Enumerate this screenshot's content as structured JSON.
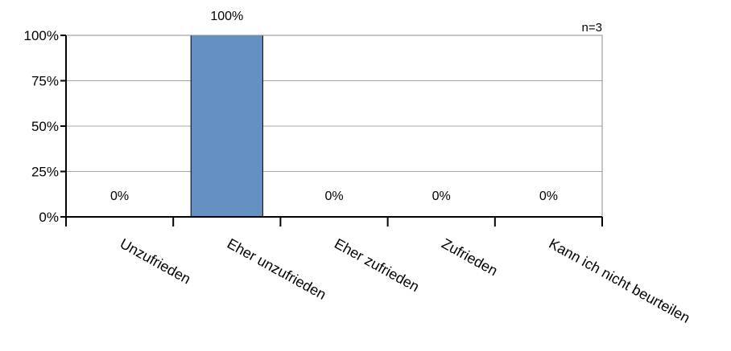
{
  "chart_data": {
    "type": "bar",
    "categories": [
      "Unzufrieden",
      "Eher unzufrieden",
      "Eher zufrieden",
      "Zufrieden",
      "Kann ich nicht beurteilen"
    ],
    "values": [
      0,
      100,
      0,
      0,
      0
    ],
    "data_labels": [
      "0%",
      "100%",
      "0%",
      "0%",
      "0%"
    ],
    "ylim": [
      0,
      100
    ],
    "yticks": [
      0,
      25,
      50,
      75,
      100
    ],
    "ytick_labels": [
      "0%",
      "25%",
      "50%",
      "75%",
      "100%"
    ],
    "grid": true,
    "note": "n=3",
    "bar_color": "#6491c2"
  }
}
